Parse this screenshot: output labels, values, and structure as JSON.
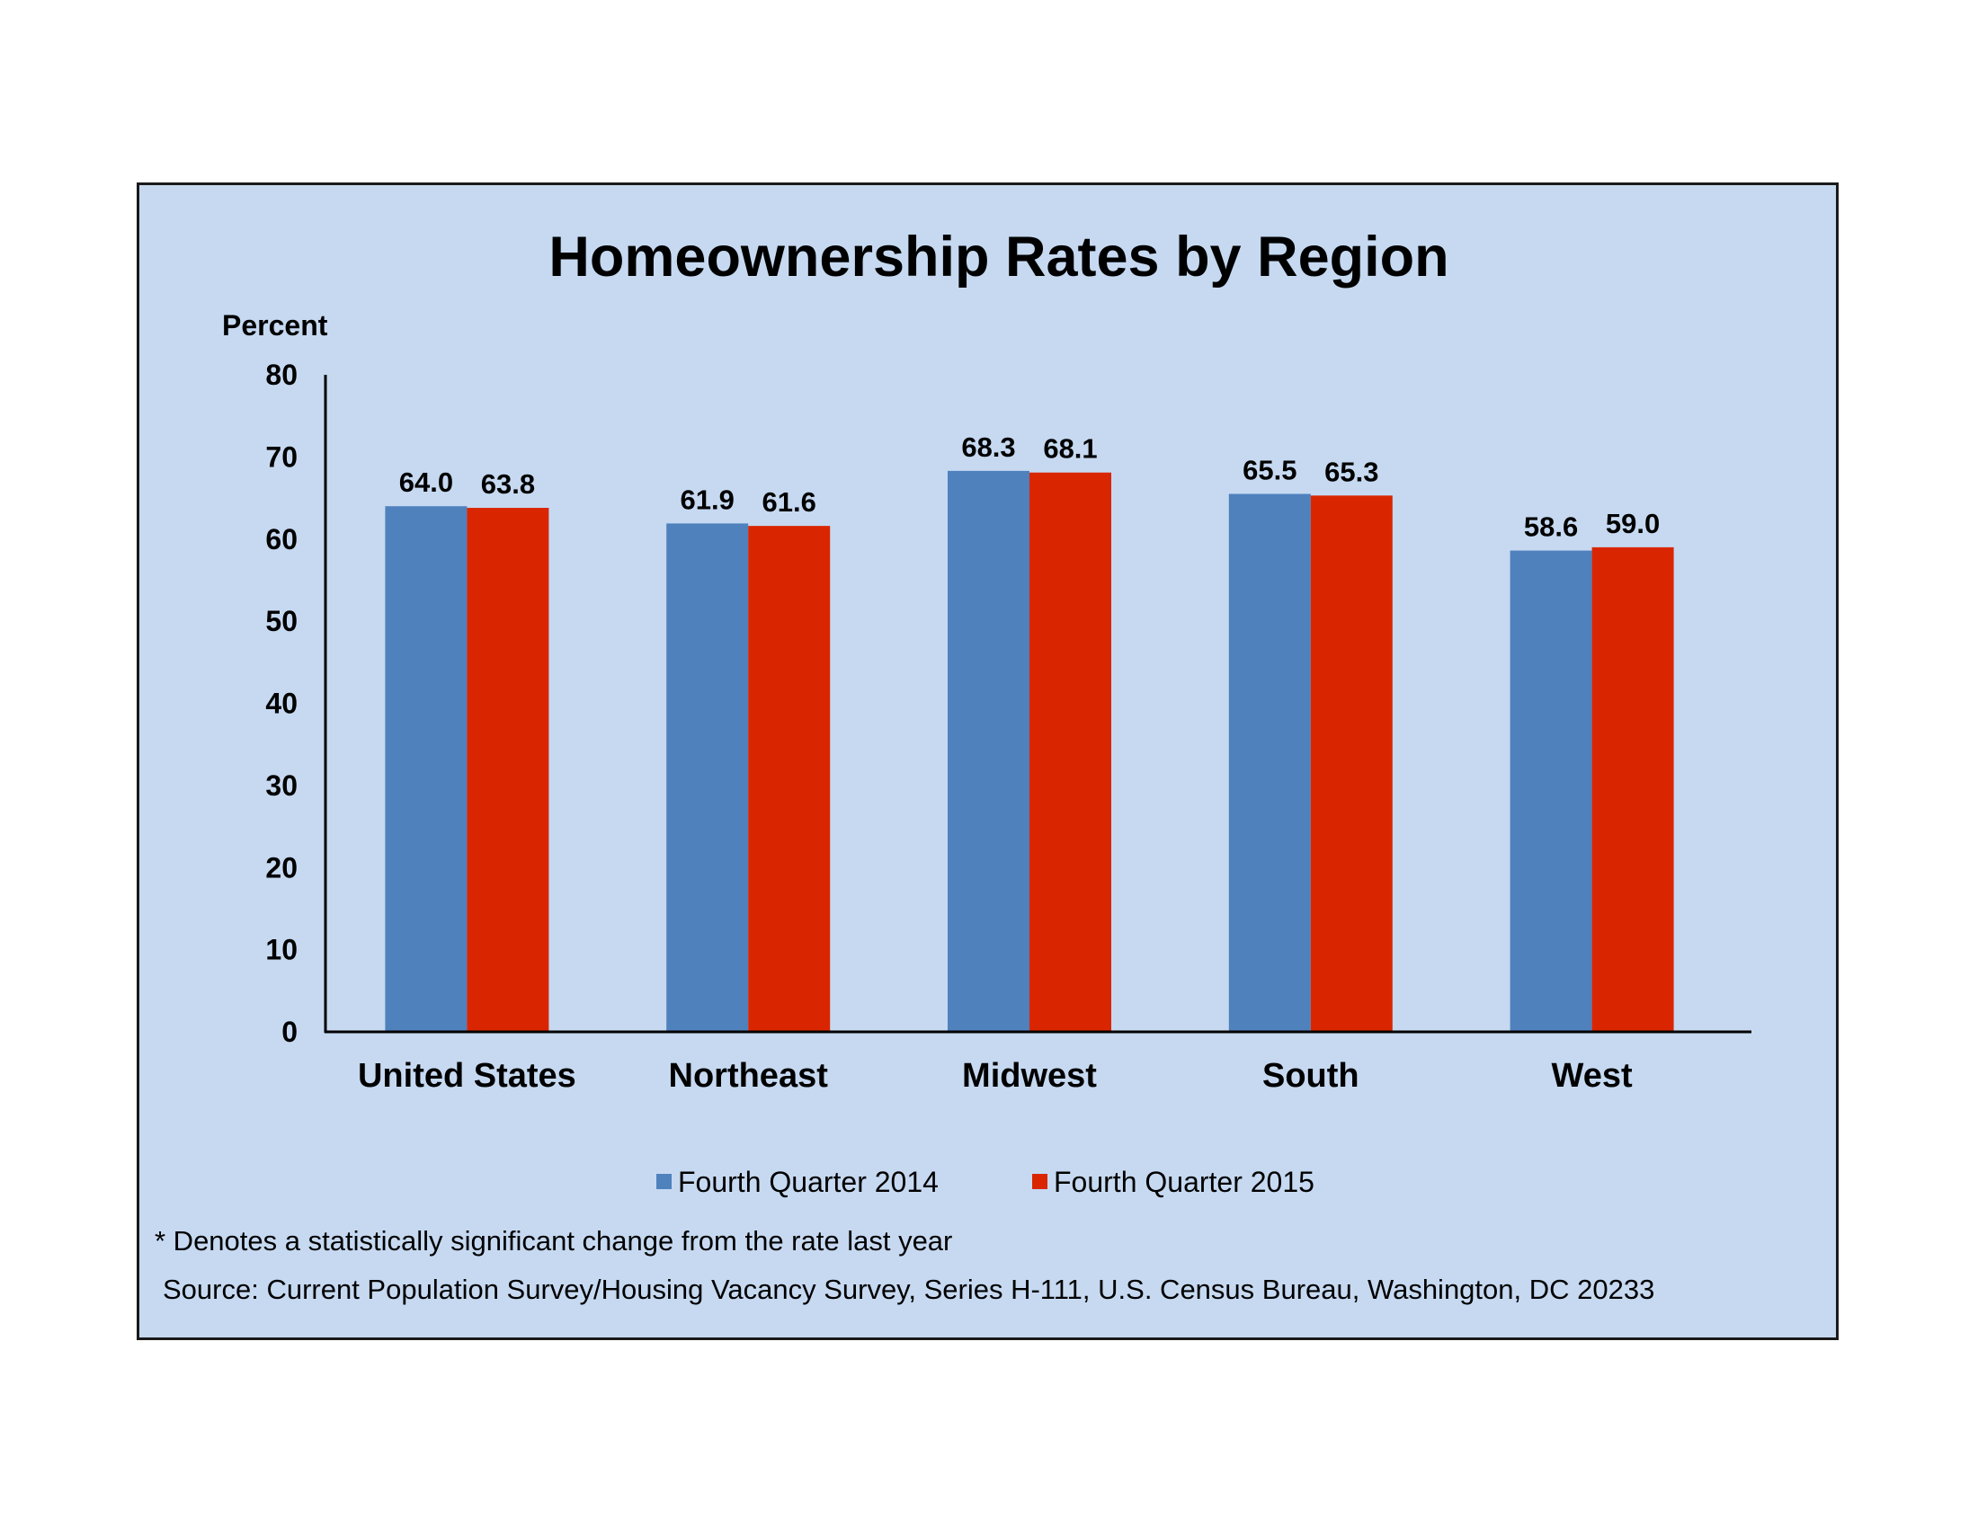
{
  "chart_data": {
    "type": "bar",
    "title": "Homeownership Rates by Region",
    "ylabel": "Percent",
    "xlabel": "",
    "categories": [
      "United States",
      "Northeast",
      "Midwest",
      "South",
      "West"
    ],
    "series": [
      {
        "name": "Fourth Quarter 2014",
        "color": "#4f81bd",
        "values": [
          64.0,
          61.9,
          68.3,
          65.5,
          58.6
        ],
        "labels": [
          "64.0",
          "61.9",
          "68.3",
          "65.5",
          "58.6"
        ]
      },
      {
        "name": "Fourth Quarter 2015",
        "color": "#d92600",
        "values": [
          63.8,
          61.6,
          68.1,
          65.3,
          59.0
        ],
        "labels": [
          "63.8",
          "61.6",
          "68.1",
          "65.3",
          "59.0"
        ]
      }
    ],
    "ylim": [
      0,
      80
    ],
    "yticks": [
      "0",
      "10",
      "20",
      "30",
      "40",
      "50",
      "60",
      "70",
      "80"
    ],
    "grid": false,
    "legend_position": "bottom"
  },
  "notes": {
    "significance": "* Denotes a statistically significant change from the rate last year",
    "source": "Source: Current Population Survey/Housing Vacancy Survey, Series H-111, U.S. Census Bureau, Washington, DC 20233"
  },
  "colors": {
    "panel_background": "#c6d9f1",
    "axis": "#000000"
  }
}
